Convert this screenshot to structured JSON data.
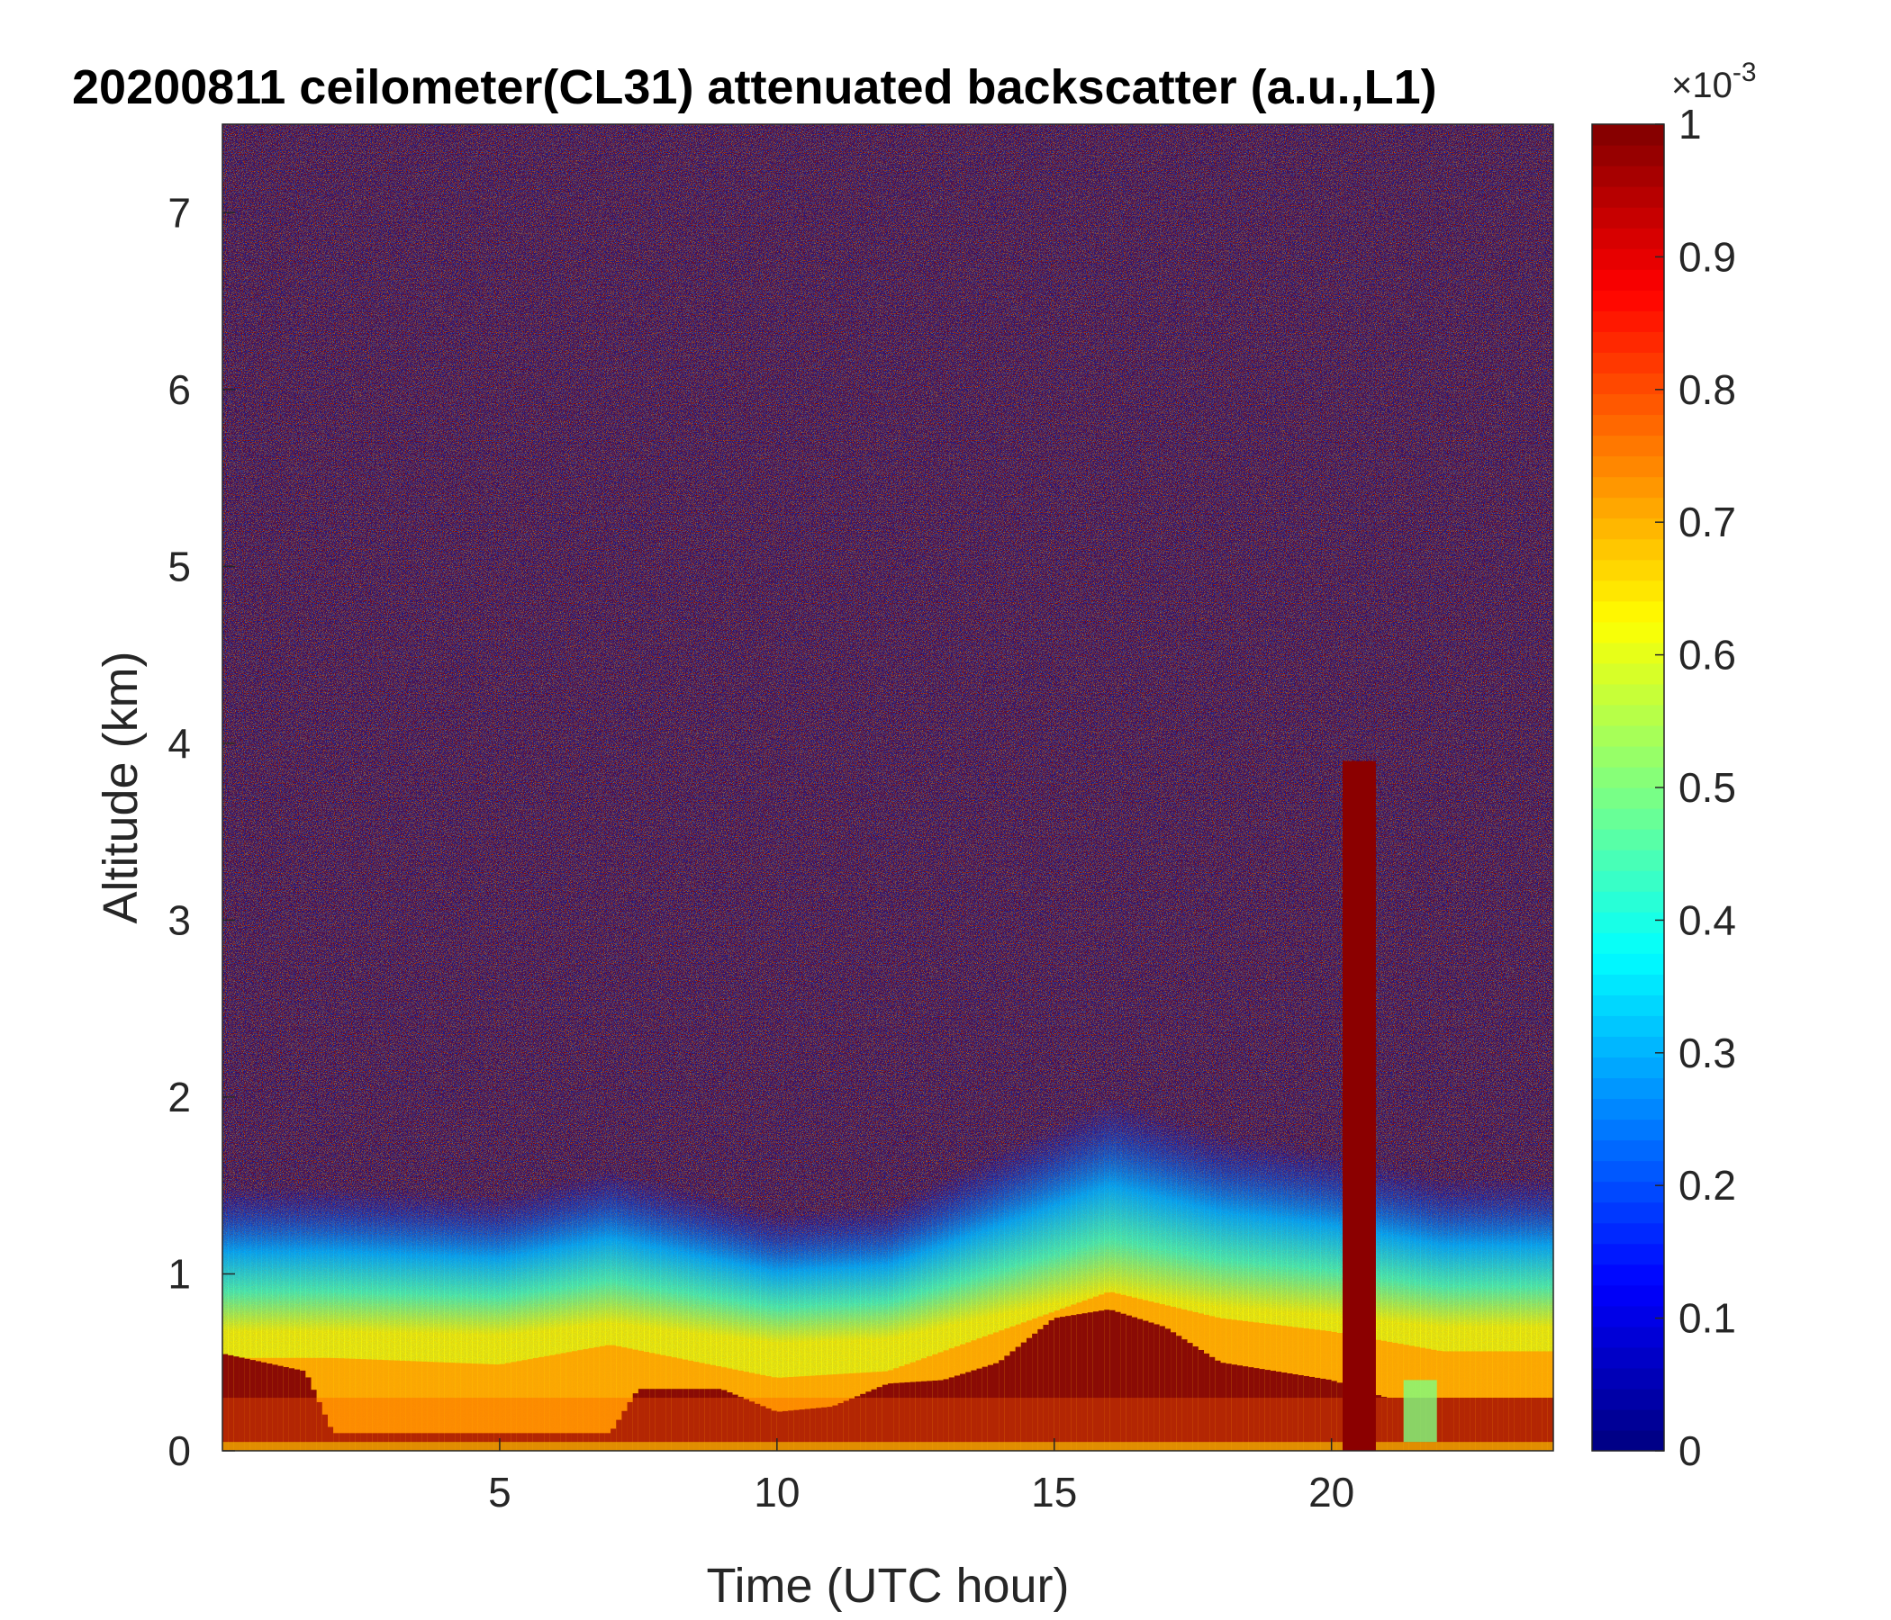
{
  "chart_data": {
    "type": "heatmap",
    "title": "20200811 ceilometer(CL31) attenuated backscatter (a.u.,L1)",
    "xlabel": "Time (UTC hour)",
    "ylabel": "Altitude (km)",
    "xlim": [
      0,
      24
    ],
    "ylim": [
      0,
      7.5
    ],
    "xticks": [
      5,
      10,
      15,
      20
    ],
    "yticks": [
      0,
      1,
      2,
      3,
      4,
      5,
      6,
      7
    ],
    "colorbar": {
      "colormap": "jet",
      "range": [
        0,
        1
      ],
      "ticks": [
        0,
        0.1,
        0.2,
        0.3,
        0.4,
        0.5,
        0.6,
        0.7,
        0.8,
        0.9,
        1
      ],
      "multiplier": "×10",
      "exponent": "-3"
    },
    "features": {
      "boundary_layer_top_km": [
        [
          0,
          0.7
        ],
        [
          2,
          0.7
        ],
        [
          5,
          0.65
        ],
        [
          7,
          0.8
        ],
        [
          10,
          0.55
        ],
        [
          12,
          0.6
        ],
        [
          14,
          0.9
        ],
        [
          16,
          1.2
        ],
        [
          18,
          1.0
        ],
        [
          20,
          0.9
        ],
        [
          22,
          0.75
        ],
        [
          24,
          0.75
        ]
      ],
      "dense_layer_top_km": [
        [
          0,
          0.55
        ],
        [
          1.5,
          0.45
        ],
        [
          2,
          0.1
        ],
        [
          7,
          0.1
        ],
        [
          7.5,
          0.35
        ],
        [
          9,
          0.35
        ],
        [
          10,
          0.22
        ],
        [
          11,
          0.25
        ],
        [
          12,
          0.38
        ],
        [
          13,
          0.4
        ],
        [
          14,
          0.5
        ],
        [
          15,
          0.75
        ],
        [
          16,
          0.8
        ],
        [
          17,
          0.7
        ],
        [
          18,
          0.5
        ],
        [
          20,
          0.4
        ],
        [
          21,
          0.3
        ],
        [
          24,
          0.3
        ]
      ],
      "precip_column": {
        "x": [
          20.2,
          20.8
        ],
        "top_km": 3.9
      }
    }
  }
}
